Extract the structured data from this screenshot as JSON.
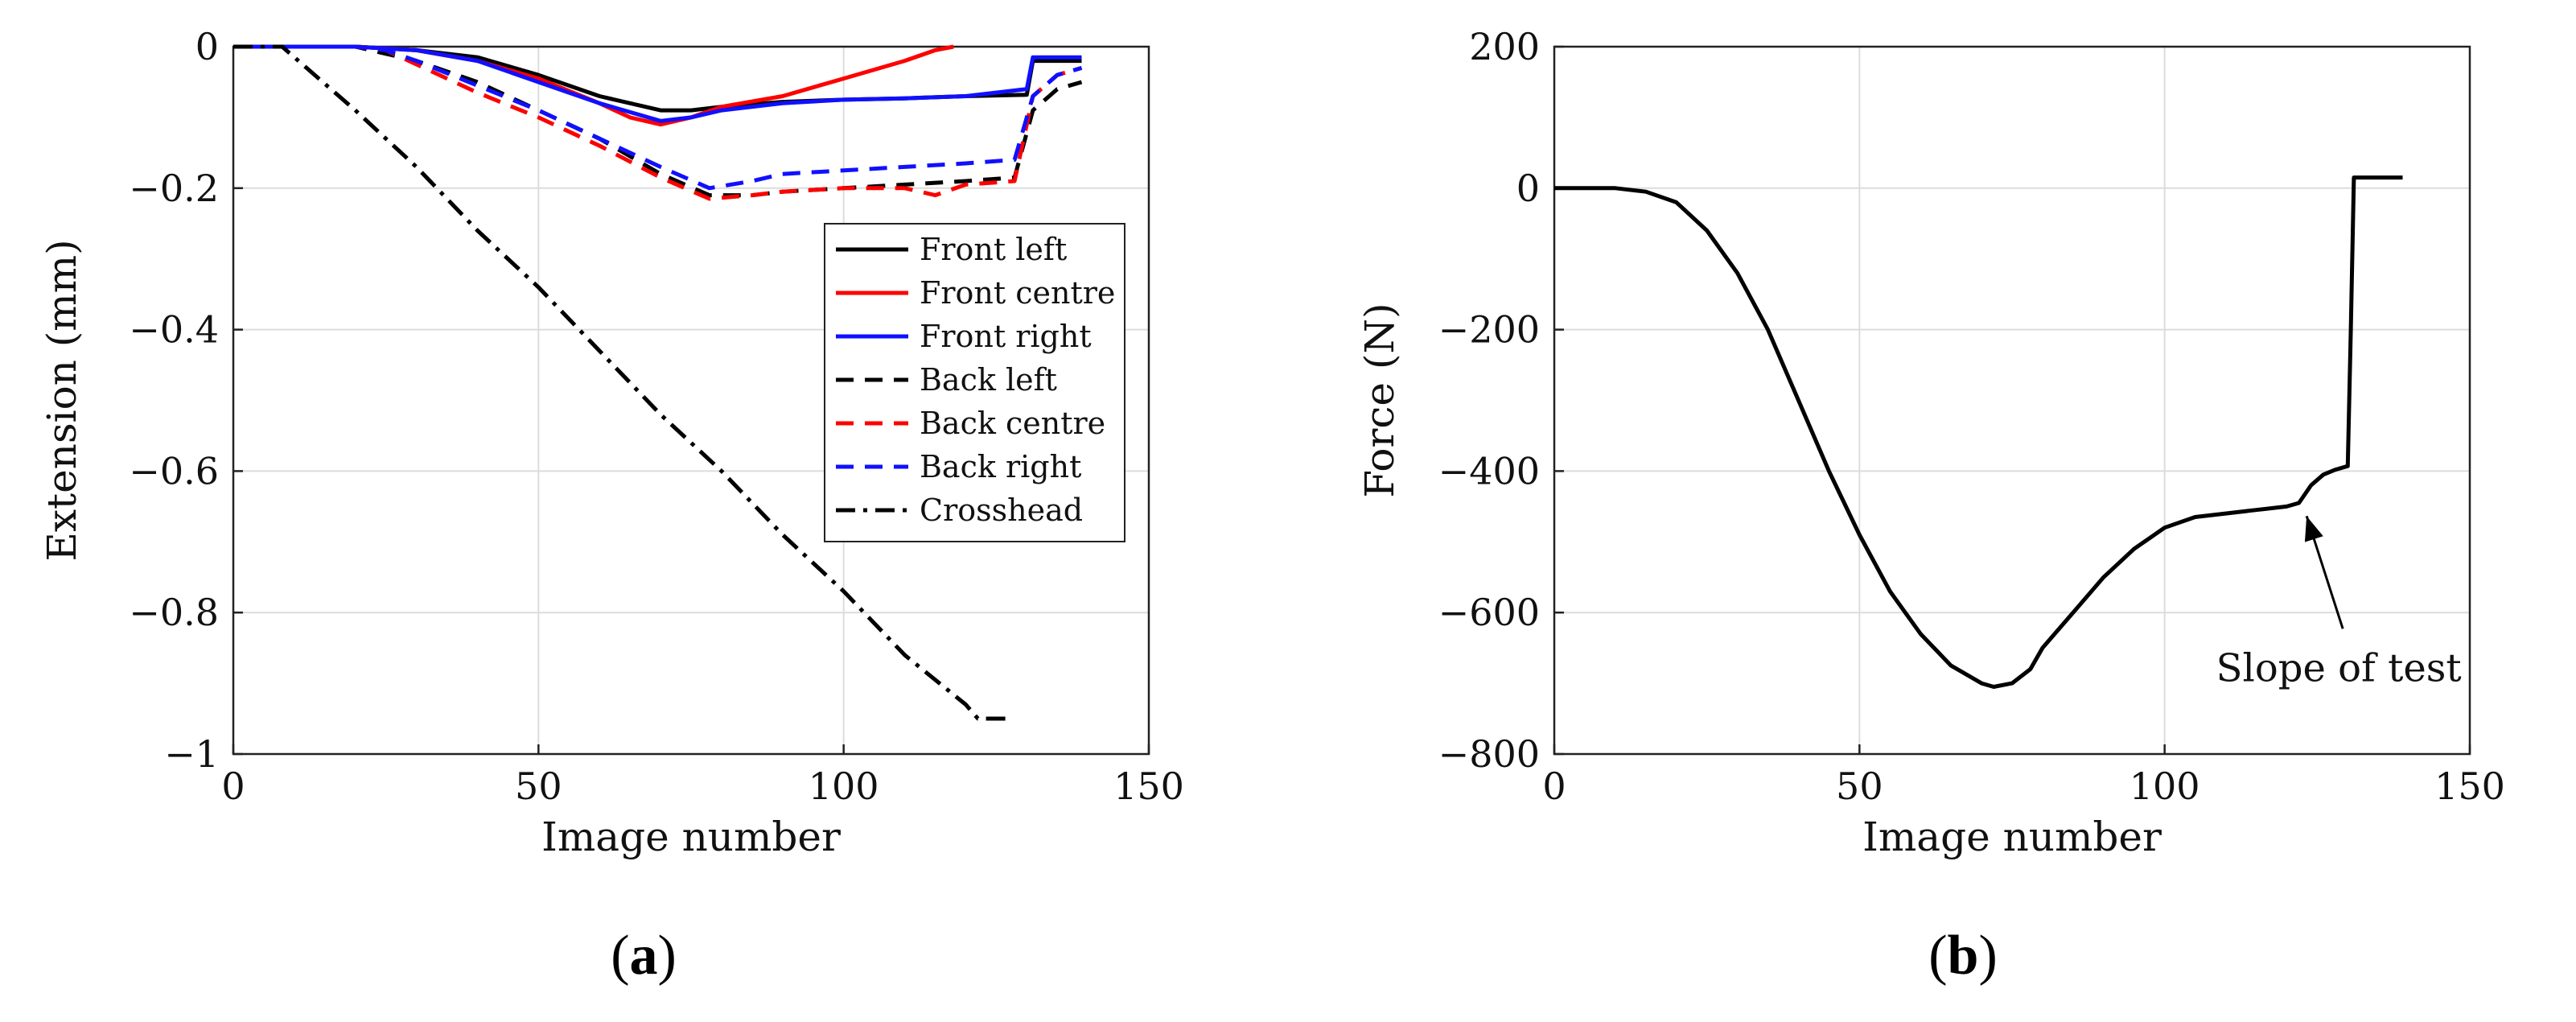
{
  "colors": {
    "black": "#000000",
    "red": "#ff0000",
    "blue": "#1010ff",
    "grid": "#dcdcdc",
    "axis": "#222222"
  },
  "panel_labels": [
    "(a)",
    "(b)"
  ],
  "chart_data": [
    {
      "type": "line",
      "panel": "a",
      "title": "",
      "xlabel": "Image number",
      "ylabel": "Extension (mm)",
      "xlim": [
        0,
        150
      ],
      "ylim": [
        -1,
        0
      ],
      "xticks": [
        0,
        50,
        100,
        150
      ],
      "xtick_labels": [
        "0",
        "50",
        "100",
        "150"
      ],
      "yticks": [
        0,
        -0.2,
        -0.4,
        -0.6,
        -0.8,
        -1
      ],
      "ytick_labels": [
        "0",
        "−0.2",
        "−0.4",
        "−0.6",
        "−0.8",
        "−1"
      ],
      "grid": true,
      "legend_position": "right",
      "series": [
        {
          "name": "Front left",
          "color": "#000000",
          "dash": "solid",
          "x": [
            0,
            20,
            30,
            40,
            50,
            60,
            70,
            75,
            80,
            90,
            100,
            110,
            120,
            130,
            131,
            139
          ],
          "y": [
            0,
            0,
            -0.005,
            -0.015,
            -0.04,
            -0.07,
            -0.09,
            -0.09,
            -0.085,
            -0.078,
            -0.075,
            -0.073,
            -0.07,
            -0.068,
            -0.02,
            -0.02
          ]
        },
        {
          "name": "Front centre",
          "color": "#ff0000",
          "dash": "solid",
          "x": [
            0,
            20,
            30,
            40,
            50,
            60,
            65,
            70,
            75,
            80,
            90,
            100,
            110,
            115,
            118
          ],
          "y": [
            0,
            0,
            -0.005,
            -0.02,
            -0.045,
            -0.08,
            -0.1,
            -0.11,
            -0.1,
            -0.085,
            -0.07,
            -0.045,
            -0.02,
            -0.005,
            0
          ]
        },
        {
          "name": "Front right",
          "color": "#1010ff",
          "dash": "solid",
          "x": [
            0,
            20,
            30,
            40,
            50,
            60,
            70,
            75,
            80,
            90,
            100,
            110,
            120,
            130,
            131,
            139
          ],
          "y": [
            0,
            0,
            -0.005,
            -0.02,
            -0.05,
            -0.08,
            -0.105,
            -0.1,
            -0.09,
            -0.08,
            -0.075,
            -0.073,
            -0.07,
            -0.06,
            -0.015,
            -0.015
          ]
        },
        {
          "name": "Back left",
          "color": "#000000",
          "dash": "dashed",
          "x": [
            0,
            20,
            25,
            30,
            40,
            50,
            60,
            70,
            78,
            85,
            90,
            100,
            110,
            120,
            128,
            131,
            135,
            139
          ],
          "y": [
            0,
            0,
            -0.01,
            -0.02,
            -0.05,
            -0.09,
            -0.13,
            -0.18,
            -0.21,
            -0.21,
            -0.205,
            -0.2,
            -0.195,
            -0.19,
            -0.185,
            -0.09,
            -0.06,
            -0.05
          ]
        },
        {
          "name": "Back centre",
          "color": "#ff0000",
          "dash": "dashed",
          "x": [
            0,
            20,
            25,
            30,
            40,
            50,
            60,
            70,
            78,
            85,
            90,
            100,
            110,
            115,
            120,
            128,
            131,
            135,
            139
          ],
          "y": [
            0,
            0,
            -0.005,
            -0.025,
            -0.065,
            -0.1,
            -0.14,
            -0.185,
            -0.215,
            -0.21,
            -0.205,
            -0.2,
            -0.2,
            -0.21,
            -0.195,
            -0.19,
            -0.07,
            -0.04,
            -0.03
          ]
        },
        {
          "name": "Back right",
          "color": "#1010ff",
          "dash": "dashed",
          "x": [
            0,
            20,
            25,
            30,
            40,
            50,
            60,
            70,
            78,
            85,
            90,
            100,
            110,
            120,
            128,
            131,
            135,
            139
          ],
          "y": [
            0,
            0,
            -0.005,
            -0.02,
            -0.055,
            -0.09,
            -0.13,
            -0.17,
            -0.2,
            -0.19,
            -0.18,
            -0.175,
            -0.17,
            -0.165,
            -0.16,
            -0.07,
            -0.04,
            -0.03
          ]
        },
        {
          "name": "Crosshead",
          "color": "#000000",
          "dash": "dashdot",
          "x": [
            0,
            8,
            20,
            30,
            40,
            50,
            60,
            70,
            80,
            90,
            100,
            110,
            120,
            122,
            125,
            127
          ],
          "y": [
            0,
            0,
            -0.09,
            -0.17,
            -0.26,
            -0.34,
            -0.43,
            -0.52,
            -0.6,
            -0.69,
            -0.77,
            -0.86,
            -0.93,
            -0.95,
            -0.95,
            -0.95
          ]
        }
      ]
    },
    {
      "type": "line",
      "panel": "b",
      "title": "",
      "xlabel": "Image number",
      "ylabel": "Force (N)",
      "xlim": [
        0,
        150
      ],
      "ylim": [
        -800,
        200
      ],
      "xticks": [
        0,
        50,
        100,
        150
      ],
      "xtick_labels": [
        "0",
        "50",
        "100",
        "150"
      ],
      "yticks": [
        200,
        0,
        -200,
        -400,
        -600,
        -800
      ],
      "ytick_labels": [
        "200",
        "0",
        "−200",
        "−400",
        "−600",
        "−800"
      ],
      "grid": true,
      "annotation": {
        "text": "Slope of test",
        "x": 123,
        "y": -450
      },
      "series": [
        {
          "name": "",
          "color": "#000000",
          "dash": "solid",
          "x": [
            0,
            10,
            15,
            20,
            25,
            30,
            35,
            40,
            45,
            50,
            55,
            60,
            65,
            70,
            72,
            75,
            78,
            80,
            85,
            90,
            95,
            100,
            105,
            110,
            115,
            120,
            122,
            124,
            126,
            128,
            130,
            130.5,
            131,
            132,
            139
          ],
          "y": [
            0,
            0,
            -5,
            -20,
            -60,
            -120,
            -200,
            -300,
            -400,
            -490,
            -570,
            -630,
            -675,
            -700,
            -705,
            -700,
            -680,
            -650,
            -600,
            -550,
            -510,
            -480,
            -465,
            -460,
            -455,
            -450,
            -445,
            -420,
            -405,
            -398,
            -393,
            -200,
            15,
            15,
            15
          ]
        }
      ]
    }
  ]
}
